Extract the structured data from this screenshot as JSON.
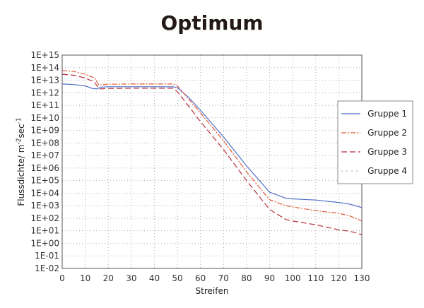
{
  "chart_data": {
    "type": "line",
    "title": "Optimum",
    "xlabel": "Streifen",
    "ylabel": "Flussdichte/ m",
    "ylabel_sup1": "-2",
    "ylabel_mid": "sec",
    "ylabel_sup2": "-1",
    "xlim": [
      0,
      130
    ],
    "ylim_exp": [
      -2,
      15
    ],
    "y_scale": "log",
    "grid": true,
    "legend_position": "right",
    "x_ticks": [
      "0",
      "10",
      "20",
      "30",
      "40",
      "50",
      "60",
      "70",
      "80",
      "90",
      "100",
      "110",
      "120",
      "130"
    ],
    "y_ticks": [
      "1E+15",
      "1E+14",
      "1E+13",
      "1E+12",
      "1E+11",
      "1E+10",
      "1E+09",
      "1E+08",
      "1E+07",
      "1E+06",
      "1E+05",
      "1E+04",
      "1E+03",
      "1E+02",
      "1E+01",
      "1E+00",
      "1E-01",
      "1E-02"
    ],
    "series": [
      {
        "name": "Gruppe 1",
        "color": "#4f6fc8",
        "dash": "none",
        "points": [
          [
            0,
            5000000000000.0
          ],
          [
            5,
            4500000000000.0
          ],
          [
            10,
            3500000000000.0
          ],
          [
            13,
            2200000000000.0
          ],
          [
            15,
            2000000000000.0
          ],
          [
            17,
            2800000000000.0
          ],
          [
            20,
            3000000000000.0
          ],
          [
            30,
            3000000000000.0
          ],
          [
            40,
            3000000000000.0
          ],
          [
            48,
            3000000000000.0
          ],
          [
            50,
            2500000000000.0
          ],
          [
            55,
            400000000000.0
          ],
          [
            60,
            40000000000.0
          ],
          [
            70,
            300000000.0
          ],
          [
            80,
            1500000.0
          ],
          [
            90,
            12000.0
          ],
          [
            97,
            4000.0
          ],
          [
            100,
            3500.0
          ],
          [
            110,
            2800.0
          ],
          [
            120,
            1800.0
          ],
          [
            125,
            1300.0
          ],
          [
            130,
            700.0
          ]
        ]
      },
      {
        "name": "Gruppe 2",
        "color": "#e05a3a",
        "dash": "7 2 2 2",
        "points": [
          [
            0,
            60000000000000.0
          ],
          [
            5,
            50000000000000.0
          ],
          [
            10,
            30000000000000.0
          ],
          [
            14,
            15000000000000.0
          ],
          [
            16,
            4000000000000.0
          ],
          [
            20,
            4800000000000.0
          ],
          [
            30,
            5000000000000.0
          ],
          [
            40,
            5000000000000.0
          ],
          [
            48,
            5000000000000.0
          ],
          [
            50,
            3500000000000.0
          ],
          [
            55,
            300000000000.0
          ],
          [
            60,
            25000000000.0
          ],
          [
            70,
            150000000.0
          ],
          [
            80,
            500000.0
          ],
          [
            90,
            3000.0
          ],
          [
            97,
            1000.0
          ],
          [
            100,
            800.0
          ],
          [
            110,
            400.0
          ],
          [
            120,
            250.0
          ],
          [
            125,
            150.0
          ],
          [
            130,
            60.0
          ]
        ]
      },
      {
        "name": "Gruppe 3",
        "color": "#b82f3a",
        "dash": "8 4",
        "points": [
          [
            0,
            30000000000000.0
          ],
          [
            5,
            25000000000000.0
          ],
          [
            10,
            15000000000000.0
          ],
          [
            14,
            7000000000000.0
          ],
          [
            16,
            2000000000000.0
          ],
          [
            20,
            2200000000000.0
          ],
          [
            30,
            2300000000000.0
          ],
          [
            40,
            2300000000000.0
          ],
          [
            48,
            2300000000000.0
          ],
          [
            50,
            1200000000000.0
          ],
          [
            55,
            80000000000.0
          ],
          [
            60,
            5000000000.0
          ],
          [
            70,
            30000000.0
          ],
          [
            80,
            100000.0
          ],
          [
            90,
            500.0
          ],
          [
            97,
            80.0
          ],
          [
            100,
            60.0
          ],
          [
            110,
            30.0
          ],
          [
            120,
            12.0
          ],
          [
            125,
            9
          ],
          [
            130,
            5
          ]
        ]
      },
      {
        "name": "Gruppe 4",
        "color": "#b0b0b0",
        "dash": "2 5",
        "points": []
      }
    ]
  }
}
